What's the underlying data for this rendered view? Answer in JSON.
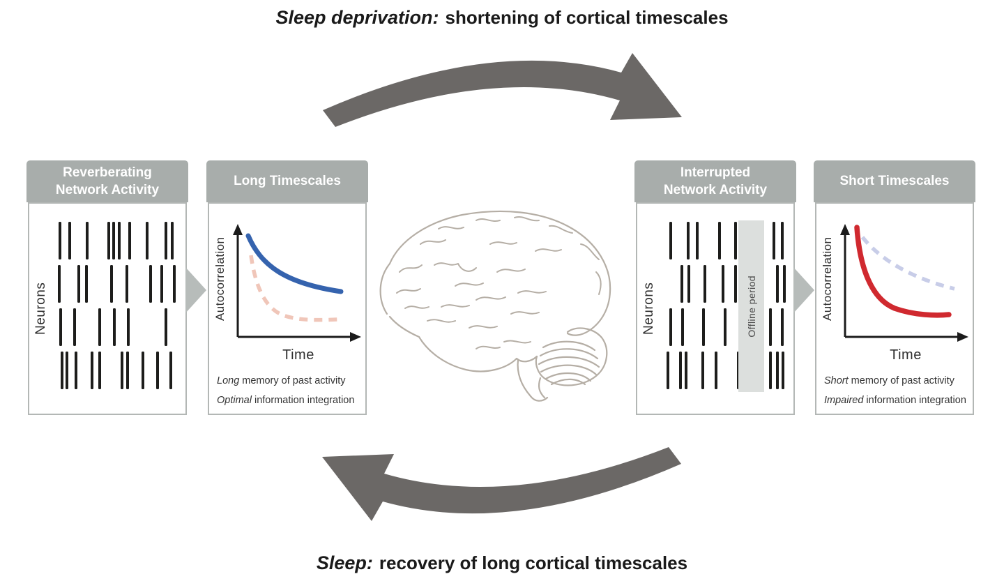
{
  "banners": {
    "top": {
      "lead": "Sleep deprivation:",
      "rest": "shortening of cortical timescales"
    },
    "bottom": {
      "lead": "Sleep:",
      "rest": "recovery of long cortical timescales"
    }
  },
  "colors": {
    "panel_header": "#a8adab",
    "panel_border": "#b3b7b5",
    "spike": "#1d1d1b",
    "offline_band": "#dcdfdd",
    "arrow_gray": "#6b6866",
    "brain_line": "#b5aea5",
    "long_timescale_blue": "#3563ae",
    "short_reference_salmon": "#f0c6b9",
    "short_timescale_red": "#d0292f",
    "long_reference_lavender": "#c8cde8"
  },
  "panels": {
    "reverberating": {
      "title_line1": "Reverberating",
      "title_line2": "Network Activity",
      "y_label": "Neurons",
      "spike_rows": [
        [
          3.2,
          11.5,
          25.4,
          42.9,
          47.2,
          51.7,
          60.2,
          74.4,
          89.6,
          94.8
        ],
        [
          2.6,
          18.9,
          24.8,
          45.7,
          57.8,
          77.2,
          86.5,
          96.7
        ],
        [
          3.7,
          15.6,
          35.6,
          47.6,
          59.3,
          89.6
        ],
        [
          5,
          9.3,
          16.7,
          29.6,
          35.9,
          53.7,
          58.3,
          71.1,
          82.8,
          93.9
        ]
      ]
    },
    "long_timescales": {
      "title": "Long Timescales",
      "y_label": "Autocorrelation",
      "x_label": "Time",
      "notes": [
        {
          "em": "Long",
          "text": "memory of past activity"
        },
        {
          "em": "Optimal",
          "text": "information integration"
        }
      ],
      "curves": [
        {
          "name": "long-timescale-autocorrelation",
          "style": "solid",
          "color": "#3563ae"
        },
        {
          "name": "short-timescale-reference",
          "style": "dashed",
          "color": "#f0c6b9"
        }
      ]
    },
    "interrupted": {
      "title_line1": "Interrupted",
      "title_line2": "Network Activity",
      "y_label": "Neurons",
      "offline_label": "Offline period",
      "offline_band": {
        "left_pct": 62,
        "width_pct": 21
      },
      "spike_rows": [
        [
          5.6,
          20,
          27.2,
          45.6,
          58.3,
          90,
          96.7
        ],
        [
          15,
          20.6,
          33.3,
          48.3,
          58.3,
          92.8,
          98.3
        ],
        [
          5.6,
          15.6,
          32.2,
          50,
          86.7,
          96.7
        ],
        [
          3.3,
          13.9,
          18.3,
          31.7,
          42.8,
          60.6,
          87.2,
          92.8,
          97.2
        ]
      ]
    },
    "short_timescales": {
      "title": "Short Timescales",
      "y_label": "Autocorrelation",
      "x_label": "Time",
      "notes": [
        {
          "em": "Short",
          "text": "memory of past activity"
        },
        {
          "em": "Impaired",
          "text": "information integration"
        }
      ],
      "curves": [
        {
          "name": "short-timescale-autocorrelation",
          "style": "solid",
          "color": "#d0292f"
        },
        {
          "name": "long-timescale-reference",
          "style": "dashed",
          "color": "#c8cde8"
        }
      ]
    }
  },
  "chart_data": [
    {
      "type": "line",
      "title": "Long Timescales",
      "xlabel": "Time",
      "ylabel": "Autocorrelation",
      "axis_numeric": false,
      "legend": "none",
      "series": [
        {
          "name": "long timescale autocorrelation (reverberating activity)",
          "style": "solid",
          "color": "#3563ae",
          "x_norm": [
            0,
            0.2,
            0.4,
            0.6,
            0.8,
            1.0
          ],
          "y_norm": [
            1.0,
            0.72,
            0.57,
            0.48,
            0.43,
            0.4
          ]
        },
        {
          "name": "short timescale reference",
          "style": "dashed",
          "color": "#f0c6b9",
          "x_norm": [
            0,
            0.2,
            0.4,
            0.6,
            0.8,
            1.0
          ],
          "y_norm": [
            0.82,
            0.38,
            0.22,
            0.16,
            0.14,
            0.13
          ]
        }
      ]
    },
    {
      "type": "line",
      "title": "Short Timescales",
      "xlabel": "Time",
      "ylabel": "Autocorrelation",
      "axis_numeric": false,
      "legend": "none",
      "series": [
        {
          "name": "short timescale autocorrelation (interrupted activity)",
          "style": "solid",
          "color": "#d0292f",
          "x_norm": [
            0,
            0.2,
            0.4,
            0.6,
            0.8,
            1.0
          ],
          "y_norm": [
            1.0,
            0.42,
            0.26,
            0.2,
            0.18,
            0.18
          ]
        },
        {
          "name": "long timescale reference",
          "style": "dashed",
          "color": "#c8cde8",
          "x_norm": [
            0,
            0.2,
            0.4,
            0.6,
            0.8,
            1.0
          ],
          "y_norm": [
            0.9,
            0.72,
            0.6,
            0.52,
            0.47,
            0.44
          ]
        }
      ]
    }
  ]
}
